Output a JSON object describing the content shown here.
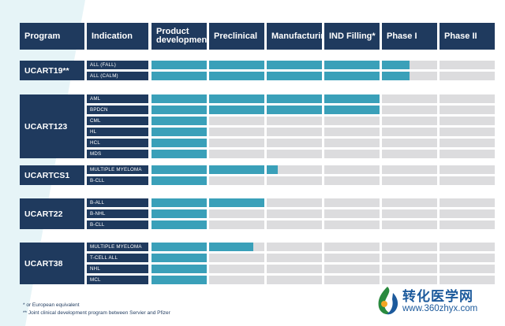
{
  "header": {
    "program": "Program",
    "indication": "Indication",
    "stages": [
      "Product development",
      "Preclinical",
      "Manufacturing",
      "IND Filling*",
      "Phase I",
      "Phase II"
    ]
  },
  "chart_data": {
    "type": "table",
    "stages": [
      "Product development",
      "Preclinical",
      "Manufacturing",
      "IND Filling*",
      "Phase I",
      "Phase II"
    ],
    "programs": [
      {
        "name": "UCART19**",
        "rows": [
          {
            "indication": "ALL (FALL)",
            "progress": 4.5
          },
          {
            "indication": "ALL (CALM)",
            "progress": 4.5
          }
        ]
      },
      {
        "name": "UCART123",
        "rows": [
          {
            "indication": "AML",
            "progress": 4
          },
          {
            "indication": "BPDCN",
            "progress": 4
          },
          {
            "indication": "CML",
            "progress": 1
          },
          {
            "indication": "HL",
            "progress": 1
          },
          {
            "indication": "HCL",
            "progress": 1
          },
          {
            "indication": "MDS",
            "progress": 1
          }
        ]
      },
      {
        "name": "UCARTCS1",
        "rows": [
          {
            "indication": "MULTIPLE MYELOMA",
            "progress": 2.2
          },
          {
            "indication": "B-CLL",
            "progress": 1
          }
        ]
      },
      {
        "name": "UCART22",
        "rows": [
          {
            "indication": "B-ALL",
            "progress": 2
          },
          {
            "indication": "B-NHL",
            "progress": 1
          },
          {
            "indication": "B-CLL",
            "progress": 1
          }
        ]
      },
      {
        "name": "UCART38",
        "rows": [
          {
            "indication": "MULTIPLE MYELOMA",
            "progress": 1.8
          },
          {
            "indication": "T-CELL ALL",
            "progress": 1
          },
          {
            "indication": "NHL",
            "progress": 1
          },
          {
            "indication": "MCL",
            "progress": 1
          }
        ]
      }
    ]
  },
  "footnotes": [
    "* or European equivalent",
    "** Joint clinical development program between Servier and Pfizer"
  ],
  "watermark": {
    "text": "转化医学网",
    "url": "www.360zhyx.com"
  },
  "colors": {
    "navy": "#1f3a5e",
    "teal": "#3aa0b9",
    "empty": "#dcdcde",
    "band": "#e6f4f7"
  }
}
